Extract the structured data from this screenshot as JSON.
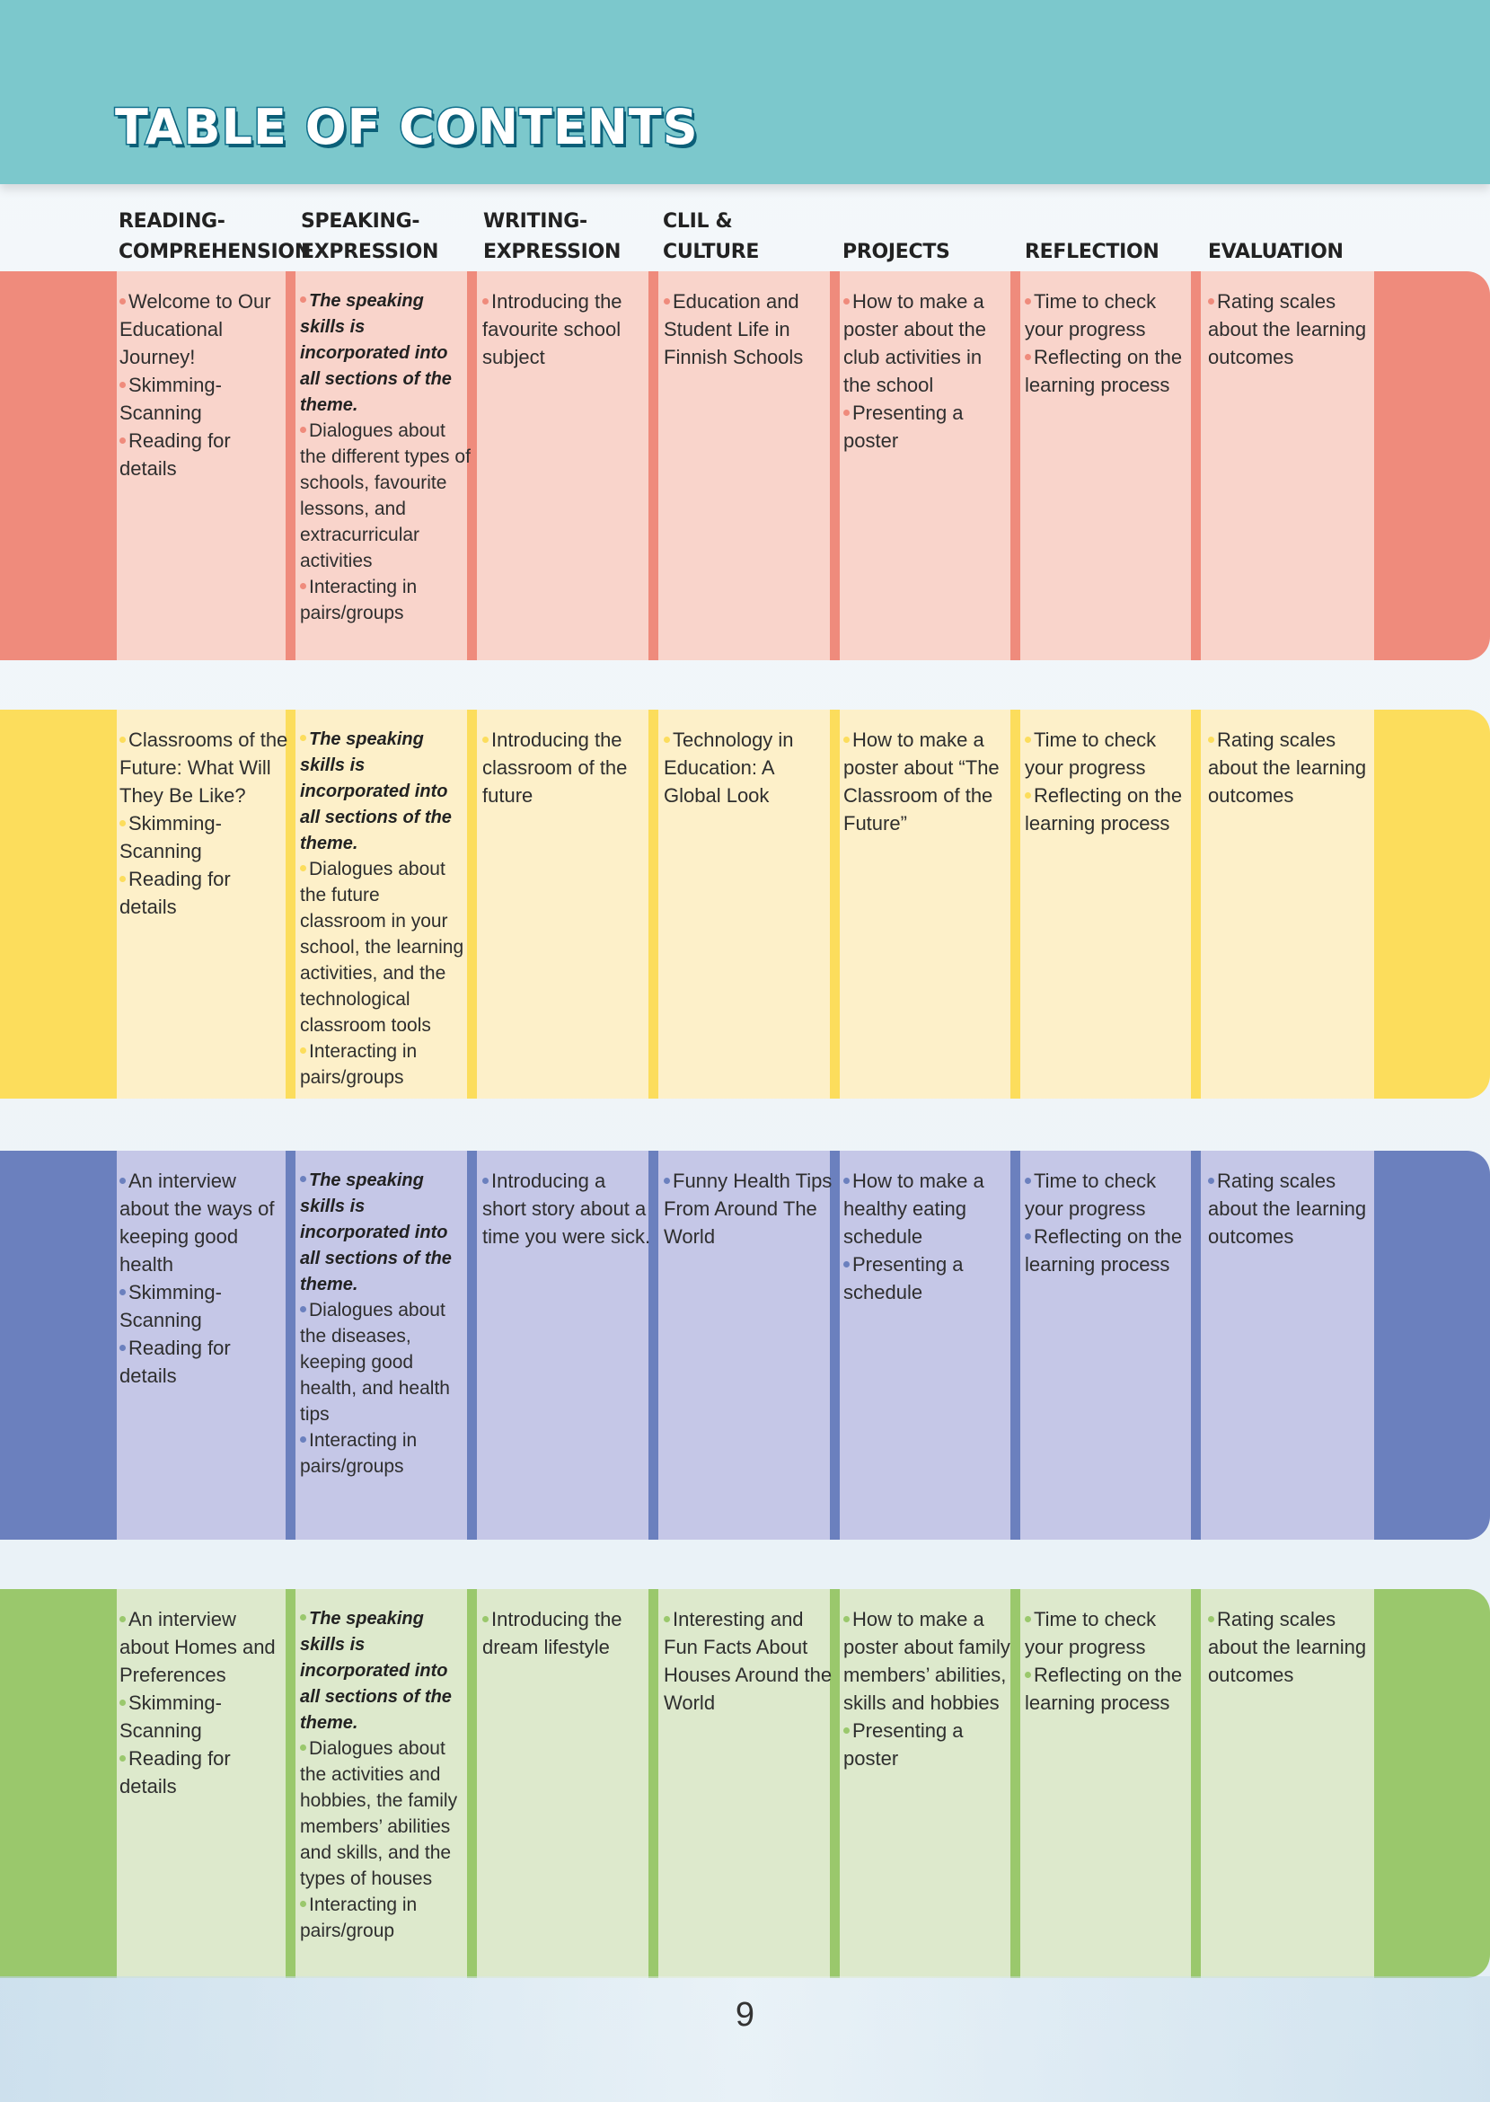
{
  "title": "TABLE OF CONTENTS",
  "page_number": "9",
  "headers": [
    {
      "line1": "READING-",
      "line2": "COMPREHENSION"
    },
    {
      "line1": "SPEAKING-",
      "line2": "EXPRESSION"
    },
    {
      "line1": "WRITING-",
      "line2": "EXPRESSION"
    },
    {
      "line1": "",
      "line2": "CLIL & CULTURE"
    },
    {
      "line1": "",
      "line2": "PROJECTS"
    },
    {
      "line1": "",
      "line2": "REFLECTION"
    },
    {
      "line1": "",
      "line2": "EVALUATION"
    }
  ],
  "colors": {
    "banner": "#7cc8cc",
    "title_stroke": "#0f6f8c",
    "row_red_strong": "#ef8b7c",
    "row_red_light": "#f9d4cb",
    "row_yellow_strong": "#fcdd5c",
    "row_yellow_light": "#fdf0c9",
    "row_blue_strong": "#6b80be",
    "row_blue_light": "#c5c7e7",
    "row_green_strong": "#9ac86c",
    "row_green_light": "#dde9cc"
  },
  "rows": [
    {
      "theme": "red",
      "cells": [
        [
          "Welcome to Our Educational Journey!",
          "Skimming-Scanning",
          "Reading for details"
        ],
        [
          "The speaking skills is incorporated into all sections of the theme.",
          "Dialogues about the different types of schools, favourite lessons, and extracurricular activities",
          "Interacting in pairs/groups"
        ],
        [
          "Introducing the favourite school subject"
        ],
        [
          "Education and Student Life in Finnish Schools"
        ],
        [
          "How to make a poster about the club activities in the school",
          "Presenting a poster"
        ],
        [
          "Time to check your progress",
          "Reflecting on the learning process"
        ],
        [
          "Rating scales about the learning outcomes"
        ]
      ]
    },
    {
      "theme": "yellow",
      "cells": [
        [
          "Classrooms of the Future: What Will They Be Like?",
          "Skimming-Scanning",
          "Reading for details"
        ],
        [
          "The speaking skills is incorporated into all sections of the theme.",
          "Dialogues about the future classroom in your school, the learning activities, and the technological classroom tools",
          "Interacting in pairs/groups"
        ],
        [
          "Introducing the classroom of the future"
        ],
        [
          "Technology in Education: A Global Look"
        ],
        [
          "How to make a poster about “The Classroom of the Future”"
        ],
        [
          "Time to check your progress",
          "Reflecting on the learning process"
        ],
        [
          "Rating scales about the learning outcomes"
        ]
      ]
    },
    {
      "theme": "blue",
      "cells": [
        [
          "An interview about the ways of keeping good health",
          "Skimming-Scanning",
          "Reading for details"
        ],
        [
          "The speaking skills is incorporated into all sections of the theme.",
          "Dialogues about the diseases, keeping good health, and health tips",
          "Interacting in pairs/groups"
        ],
        [
          "Introducing a short story about a time you were sick."
        ],
        [
          "Funny Health Tips From Around The World"
        ],
        [
          "How to make a healthy eating schedule",
          "Presenting a schedule"
        ],
        [
          "Time to check your progress",
          "Reflecting on the learning process"
        ],
        [
          "Rating scales about the learning outcomes"
        ]
      ]
    },
    {
      "theme": "green",
      "cells": [
        [
          "An interview about Homes and Preferences",
          "Skimming-Scanning",
          "Reading for details"
        ],
        [
          "The speaking skills is incorporated into all sections of the theme.",
          "Dialogues about the activities and hobbies, the family members’ abilities and skills, and the types of houses",
          "Interacting in pairs/group"
        ],
        [
          "Introducing the dream lifestyle"
        ],
        [
          "Interesting and Fun Facts About Houses Around the World"
        ],
        [
          "How to make a poster about family members’ abilities, skills and hobbies",
          "Presenting a poster"
        ],
        [
          "Time to check your progress",
          "Reflecting on the learning process"
        ],
        [
          "Rating scales about the learning outcomes"
        ]
      ]
    }
  ]
}
